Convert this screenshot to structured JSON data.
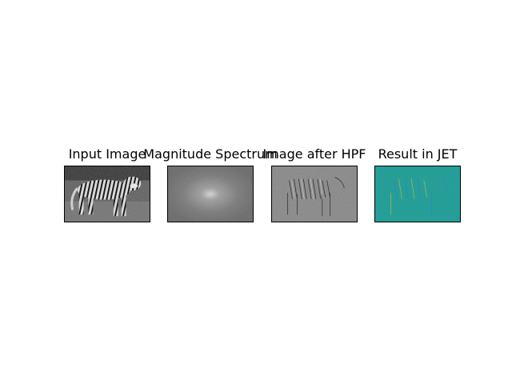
{
  "panels": [
    {
      "title": "Input Image"
    },
    {
      "title": "Magnitude Spectrum"
    },
    {
      "title": "Image after HPF"
    },
    {
      "title": "Result in JET"
    }
  ],
  "colors": {
    "background": "#ffffff",
    "frame": "#000000",
    "jet_base": "#1f9a92",
    "spectrum_base": "#6e6e6e",
    "hpf_base": "#808080"
  }
}
